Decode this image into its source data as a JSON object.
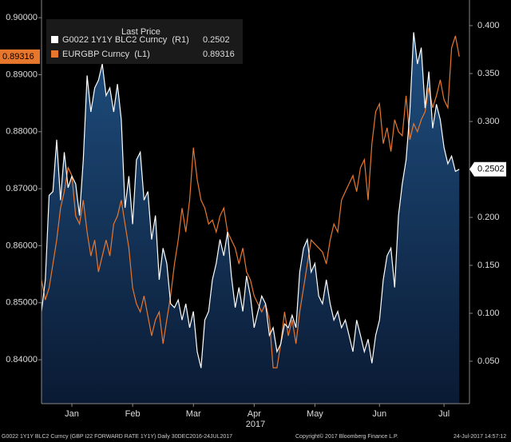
{
  "chart_data": {
    "type": "line",
    "legend_title": "Last Price",
    "x_year_label": "2017",
    "footer_left": "G0022 1Y1Y BLC2 Curncy (GBP I22 FORWARD RATE 1Y1Y)  Daily 30DEC2016-24JUL2017",
    "footer_center": "Copyright© 2017 Bloomberg Finance L.P.",
    "footer_right": "24-Jul-2017 14:57:12",
    "xlim": [
      0,
      112.7
    ],
    "xticks": [
      {
        "value": 8,
        "label": "Jan"
      },
      {
        "value": 24,
        "label": "Feb"
      },
      {
        "value": 40,
        "label": "Mar"
      },
      {
        "value": 56,
        "label": "Apr"
      },
      {
        "value": 72,
        "label": "May"
      },
      {
        "value": 89,
        "label": "Jun"
      },
      {
        "value": 106,
        "label": "Jul"
      }
    ],
    "ylim": [
      0.8323,
      0.9031
    ],
    "yticks": [
      {
        "value": 0.84,
        "label": "0.84000"
      },
      {
        "value": 0.85,
        "label": "0.85000"
      },
      {
        "value": 0.86,
        "label": "0.86000"
      },
      {
        "value": 0.87,
        "label": "0.87000"
      },
      {
        "value": 0.88,
        "label": "0.88000"
      },
      {
        "value": 0.89,
        "label": "0.89000"
      },
      {
        "value": 0.9,
        "label": "0.90000"
      }
    ],
    "y2lim": [
      0.0058,
      0.4267
    ],
    "y2ticks": [
      {
        "value": 0.05,
        "label": "0.050"
      },
      {
        "value": 0.1,
        "label": "0.100"
      },
      {
        "value": 0.15,
        "label": "0.150"
      },
      {
        "value": 0.2,
        "label": "0.200"
      },
      {
        "value": 0.25,
        "label": "0.250"
      },
      {
        "value": 0.3,
        "label": "0.300"
      },
      {
        "value": 0.35,
        "label": "0.350"
      },
      {
        "value": 0.4,
        "label": "0.400"
      }
    ],
    "grid": false,
    "series": [
      {
        "name": "G0022 1Y1Y BLC2 Curncy  (R1)",
        "color": "#ffffff",
        "axis": "y2",
        "area": true,
        "values": [
          0.102,
          0.135,
          0.223,
          0.227,
          0.281,
          0.218,
          0.268,
          0.231,
          0.243,
          0.235,
          0.202,
          0.26,
          0.348,
          0.31,
          0.335,
          0.343,
          0.36,
          0.327,
          0.335,
          0.31,
          0.339,
          0.302,
          0.21,
          0.243,
          0.193,
          0.26,
          0.268,
          0.218,
          0.227,
          0.177,
          0.202,
          0.135,
          0.168,
          0.152,
          0.11,
          0.106,
          0.114,
          0.093,
          0.11,
          0.085,
          0.102,
          0.06,
          0.043,
          0.093,
          0.102,
          0.135,
          0.152,
          0.177,
          0.16,
          0.185,
          0.139,
          0.106,
          0.127,
          0.102,
          0.139,
          0.118,
          0.085,
          0.102,
          0.118,
          0.11,
          0.077,
          0.085,
          0.06,
          0.068,
          0.089,
          0.085,
          0.098,
          0.085,
          0.143,
          0.168,
          0.177,
          0.143,
          0.152,
          0.118,
          0.11,
          0.135,
          0.11,
          0.093,
          0.102,
          0.085,
          0.093,
          0.077,
          0.06,
          0.093,
          0.077,
          0.06,
          0.073,
          0.048,
          0.077,
          0.093,
          0.135,
          0.16,
          0.168,
          0.127,
          0.202,
          0.235,
          0.26,
          0.31,
          0.393,
          0.36,
          0.377,
          0.314,
          0.352,
          0.293,
          0.318,
          0.302,
          0.273,
          0.256,
          0.264,
          0.248,
          0.2502
        ]
      },
      {
        "name": "EURGBP Curncy  (L1)",
        "color": "#e8772e",
        "axis": "y",
        "values": [
          0.854,
          0.8505,
          0.8526,
          0.8568,
          0.861,
          0.8666,
          0.8695,
          0.8737,
          0.8723,
          0.8652,
          0.8638,
          0.868,
          0.8624,
          0.8582,
          0.861,
          0.8554,
          0.8582,
          0.861,
          0.8582,
          0.8638,
          0.8652,
          0.868,
          0.8638,
          0.8596,
          0.8526,
          0.8498,
          0.8484,
          0.8512,
          0.8477,
          0.8442,
          0.847,
          0.8484,
          0.8428,
          0.847,
          0.8512,
          0.8568,
          0.861,
          0.8666,
          0.8624,
          0.868,
          0.8772,
          0.8716,
          0.868,
          0.8666,
          0.8638,
          0.8645,
          0.8624,
          0.8652,
          0.8666,
          0.8624,
          0.861,
          0.8596,
          0.8568,
          0.8596,
          0.8554,
          0.854,
          0.8512,
          0.8498,
          0.8484,
          0.8498,
          0.847,
          0.8386,
          0.8386,
          0.8428,
          0.8484,
          0.8442,
          0.847,
          0.8428,
          0.8484,
          0.8526,
          0.8568,
          0.861,
          0.8603,
          0.8596,
          0.8589,
          0.8568,
          0.861,
          0.8638,
          0.8624,
          0.868,
          0.8695,
          0.8709,
          0.8723,
          0.8695,
          0.8737,
          0.8751,
          0.868,
          0.8779,
          0.8835,
          0.8849,
          0.8779,
          0.8807,
          0.8765,
          0.8821,
          0.88,
          0.8793,
          0.8863,
          0.8786,
          0.8814,
          0.88,
          0.8821,
          0.8835,
          0.8877,
          0.8842,
          0.8863,
          0.8891,
          0.8856,
          0.8842,
          0.8947,
          0.8968,
          0.89316
        ]
      }
    ]
  }
}
